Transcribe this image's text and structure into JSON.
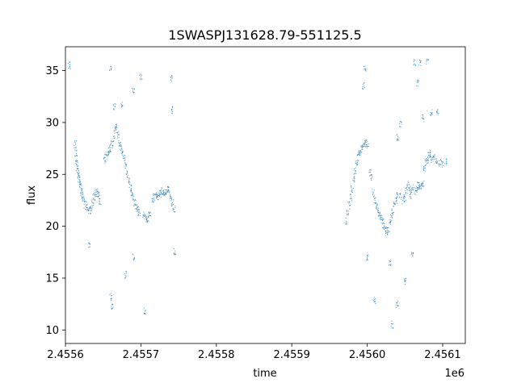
{
  "chart_data": {
    "type": "scatter",
    "title": "1SWASPJ131628.79-551125.5",
    "xlabel": "time",
    "ylabel": "flux",
    "x_offset_label": "1e6",
    "xlim": [
      2455600,
      2456130
    ],
    "ylim": [
      8.7,
      37.3
    ],
    "x_ticks": [
      2455600,
      2455700,
      2455800,
      2455900,
      2456000,
      2456100
    ],
    "x_tick_labels": [
      "2.4556",
      "2.4557",
      "2.4558",
      "2.4559",
      "2.4560",
      "2.4561"
    ],
    "y_ticks": [
      10,
      15,
      20,
      25,
      30,
      35
    ],
    "y_tick_labels": [
      "10",
      "15",
      "20",
      "25",
      "30",
      "35"
    ],
    "grid": false,
    "point_color": "#1f77b4",
    "series": [
      {
        "values": [
          [
            2455613,
            27.9
          ],
          [
            2455614,
            27.0
          ],
          [
            2455615,
            26.2
          ],
          [
            2455616,
            25.6
          ],
          [
            2455617,
            25.0
          ],
          [
            2455618,
            24.6
          ],
          [
            2455619,
            24.3
          ],
          [
            2455620,
            23.9
          ],
          [
            2455621,
            23.4
          ],
          [
            2455622,
            23.0
          ],
          [
            2455624,
            22.6
          ],
          [
            2455626,
            22.1
          ],
          [
            2455628,
            21.8
          ],
          [
            2455630,
            21.6
          ],
          [
            2455632,
            21.5
          ],
          [
            2455634,
            21.7
          ],
          [
            2455636,
            22.3
          ],
          [
            2455638,
            22.8
          ],
          [
            2455640,
            23.2
          ],
          [
            2455642,
            23.4
          ],
          [
            2455644,
            23.0
          ],
          [
            2455646,
            22.4
          ],
          [
            2455652,
            26.3
          ],
          [
            2455654,
            26.6
          ],
          [
            2455656,
            27.0
          ],
          [
            2455658,
            27.3
          ],
          [
            2455660,
            27.5
          ],
          [
            2455662,
            27.9
          ],
          [
            2455664,
            28.5
          ],
          [
            2455666,
            29.2
          ],
          [
            2455668,
            29.6
          ],
          [
            2455670,
            28.8
          ],
          [
            2455672,
            28.0
          ],
          [
            2455674,
            27.6
          ],
          [
            2455676,
            27.0
          ],
          [
            2455678,
            26.5
          ],
          [
            2455680,
            25.8
          ],
          [
            2455682,
            25.0
          ],
          [
            2455684,
            24.3
          ],
          [
            2455686,
            23.7
          ],
          [
            2455688,
            23.2
          ],
          [
            2455690,
            22.8
          ],
          [
            2455692,
            22.3
          ],
          [
            2455694,
            21.9
          ],
          [
            2455696,
            21.6
          ],
          [
            2455698,
            21.3
          ],
          [
            2455704,
            21.2
          ],
          [
            2455706,
            20.9
          ],
          [
            2455708,
            20.7
          ],
          [
            2455710,
            20.8
          ],
          [
            2455712,
            21.3
          ],
          [
            2455716,
            22.4
          ],
          [
            2455718,
            22.8
          ],
          [
            2455720,
            23.0
          ],
          [
            2455722,
            23.1
          ],
          [
            2455724,
            22.9
          ],
          [
            2455726,
            23.1
          ],
          [
            2455728,
            23.4
          ],
          [
            2455730,
            23.2
          ],
          [
            2455732,
            23.0
          ],
          [
            2455734,
            23.3
          ],
          [
            2455736,
            23.6
          ],
          [
            2455738,
            23.2
          ],
          [
            2455740,
            22.7
          ],
          [
            2455742,
            22.3
          ],
          [
            2455744,
            21.6
          ],
          [
            2455605,
            35.5
          ],
          [
            2455660,
            35.2
          ],
          [
            2455700,
            34.5
          ],
          [
            2455741,
            34.3
          ],
          [
            2455660,
            13.2
          ],
          [
            2455662,
            12.2
          ],
          [
            2455680,
            15.3
          ],
          [
            2455690,
            17.0
          ],
          [
            2455705,
            11.8
          ],
          [
            2455745,
            17.5
          ],
          [
            2455665,
            31.5
          ],
          [
            2455675,
            31.8
          ],
          [
            2455742,
            31.2
          ],
          [
            2455690,
            33.0
          ],
          [
            2455632,
            18.3
          ],
          [
            2455972,
            20.5
          ],
          [
            2455974,
            21.3
          ],
          [
            2455976,
            22.0
          ],
          [
            2455978,
            22.8
          ],
          [
            2455980,
            23.6
          ],
          [
            2455982,
            24.5
          ],
          [
            2455984,
            25.3
          ],
          [
            2455986,
            26.0
          ],
          [
            2455988,
            26.6
          ],
          [
            2455990,
            27.0
          ],
          [
            2455992,
            27.4
          ],
          [
            2455994,
            27.6
          ],
          [
            2455996,
            27.9
          ],
          [
            2455998,
            28.1
          ],
          [
            2456000,
            27.8
          ],
          [
            2456004,
            25.2
          ],
          [
            2456006,
            24.6
          ],
          [
            2456008,
            23.2
          ],
          [
            2456010,
            22.5
          ],
          [
            2456012,
            22.0
          ],
          [
            2456014,
            21.5
          ],
          [
            2456016,
            21.0
          ],
          [
            2456018,
            20.8
          ],
          [
            2456020,
            20.5
          ],
          [
            2456022,
            20.0
          ],
          [
            2456024,
            19.6
          ],
          [
            2456026,
            19.3
          ],
          [
            2456028,
            19.6
          ],
          [
            2456030,
            20.4
          ],
          [
            2456032,
            20.8
          ],
          [
            2456034,
            21.4
          ],
          [
            2456036,
            22.0
          ],
          [
            2456038,
            22.5
          ],
          [
            2456040,
            23.0
          ],
          [
            2456044,
            22.9
          ],
          [
            2456048,
            22.4
          ],
          [
            2456050,
            22.8
          ],
          [
            2456052,
            23.5
          ],
          [
            2456054,
            24.0
          ],
          [
            2456056,
            23.6
          ],
          [
            2456058,
            23.0
          ],
          [
            2456060,
            23.8
          ],
          [
            2456064,
            23.4
          ],
          [
            2456066,
            23.6
          ],
          [
            2456068,
            24.0
          ],
          [
            2456070,
            23.7
          ],
          [
            2456072,
            23.9
          ],
          [
            2456074,
            24.1
          ],
          [
            2456076,
            25.5
          ],
          [
            2456078,
            26.2
          ],
          [
            2456080,
            26.4
          ],
          [
            2456082,
            26.8
          ],
          [
            2456084,
            27.0
          ],
          [
            2456086,
            26.5
          ],
          [
            2456088,
            26.6
          ],
          [
            2456092,
            26.3
          ],
          [
            2456096,
            26.1
          ],
          [
            2456100,
            26.0
          ],
          [
            2456104,
            26.2
          ],
          [
            2455995,
            33.5
          ],
          [
            2455997,
            35.3
          ],
          [
            2456063,
            35.8
          ],
          [
            2456070,
            35.7
          ],
          [
            2456080,
            35.9
          ],
          [
            2456067,
            33.8
          ],
          [
            2456085,
            31.0
          ],
          [
            2456093,
            31.0
          ],
          [
            2456074,
            30.4
          ],
          [
            2456040,
            28.6
          ],
          [
            2456040,
            12.5
          ],
          [
            2456030,
            16.5
          ],
          [
            2456033,
            10.5
          ],
          [
            2456010,
            12.8
          ],
          [
            2456000,
            17.0
          ],
          [
            2456050,
            14.7
          ],
          [
            2456060,
            17.2
          ],
          [
            2456044,
            29.8
          ]
        ]
      }
    ]
  }
}
